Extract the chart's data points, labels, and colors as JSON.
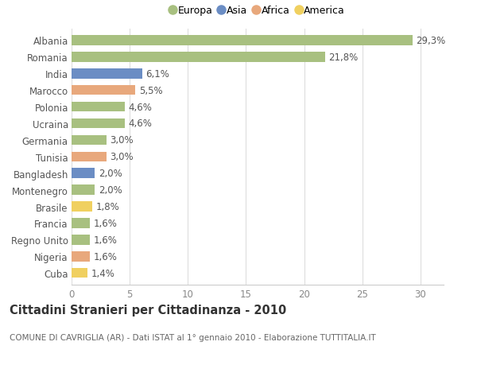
{
  "countries": [
    "Albania",
    "Romania",
    "India",
    "Marocco",
    "Polonia",
    "Ucraina",
    "Germania",
    "Tunisia",
    "Bangladesh",
    "Montenegro",
    "Brasile",
    "Francia",
    "Regno Unito",
    "Nigeria",
    "Cuba"
  ],
  "values": [
    29.3,
    21.8,
    6.1,
    5.5,
    4.6,
    4.6,
    3.0,
    3.0,
    2.0,
    2.0,
    1.8,
    1.6,
    1.6,
    1.6,
    1.4
  ],
  "labels": [
    "29,3%",
    "21,8%",
    "6,1%",
    "5,5%",
    "4,6%",
    "4,6%",
    "3,0%",
    "3,0%",
    "2,0%",
    "2,0%",
    "1,8%",
    "1,6%",
    "1,6%",
    "1,6%",
    "1,4%"
  ],
  "colors": [
    "#a8c080",
    "#a8c080",
    "#6b8dc4",
    "#e8a87c",
    "#a8c080",
    "#a8c080",
    "#a8c080",
    "#e8a87c",
    "#6b8dc4",
    "#a8c080",
    "#f0d060",
    "#a8c080",
    "#a8c080",
    "#e8a87c",
    "#f0d060"
  ],
  "legend_labels": [
    "Europa",
    "Asia",
    "Africa",
    "America"
  ],
  "legend_colors": [
    "#a8c080",
    "#6b8dc4",
    "#e8a87c",
    "#f0d060"
  ],
  "title": "Cittadini Stranieri per Cittadinanza - 2010",
  "subtitle": "COMUNE DI CAVRIGLIA (AR) - Dati ISTAT al 1° gennaio 2010 - Elaborazione TUTTITALIA.IT",
  "xlim": [
    0,
    32
  ],
  "xticks": [
    0,
    5,
    10,
    15,
    20,
    25,
    30
  ],
  "background_color": "#ffffff",
  "plot_bg_color": "#ffffff",
  "bar_height": 0.6,
  "label_fontsize": 8.5,
  "tick_fontsize": 8.5,
  "title_fontsize": 10.5,
  "subtitle_fontsize": 7.5
}
